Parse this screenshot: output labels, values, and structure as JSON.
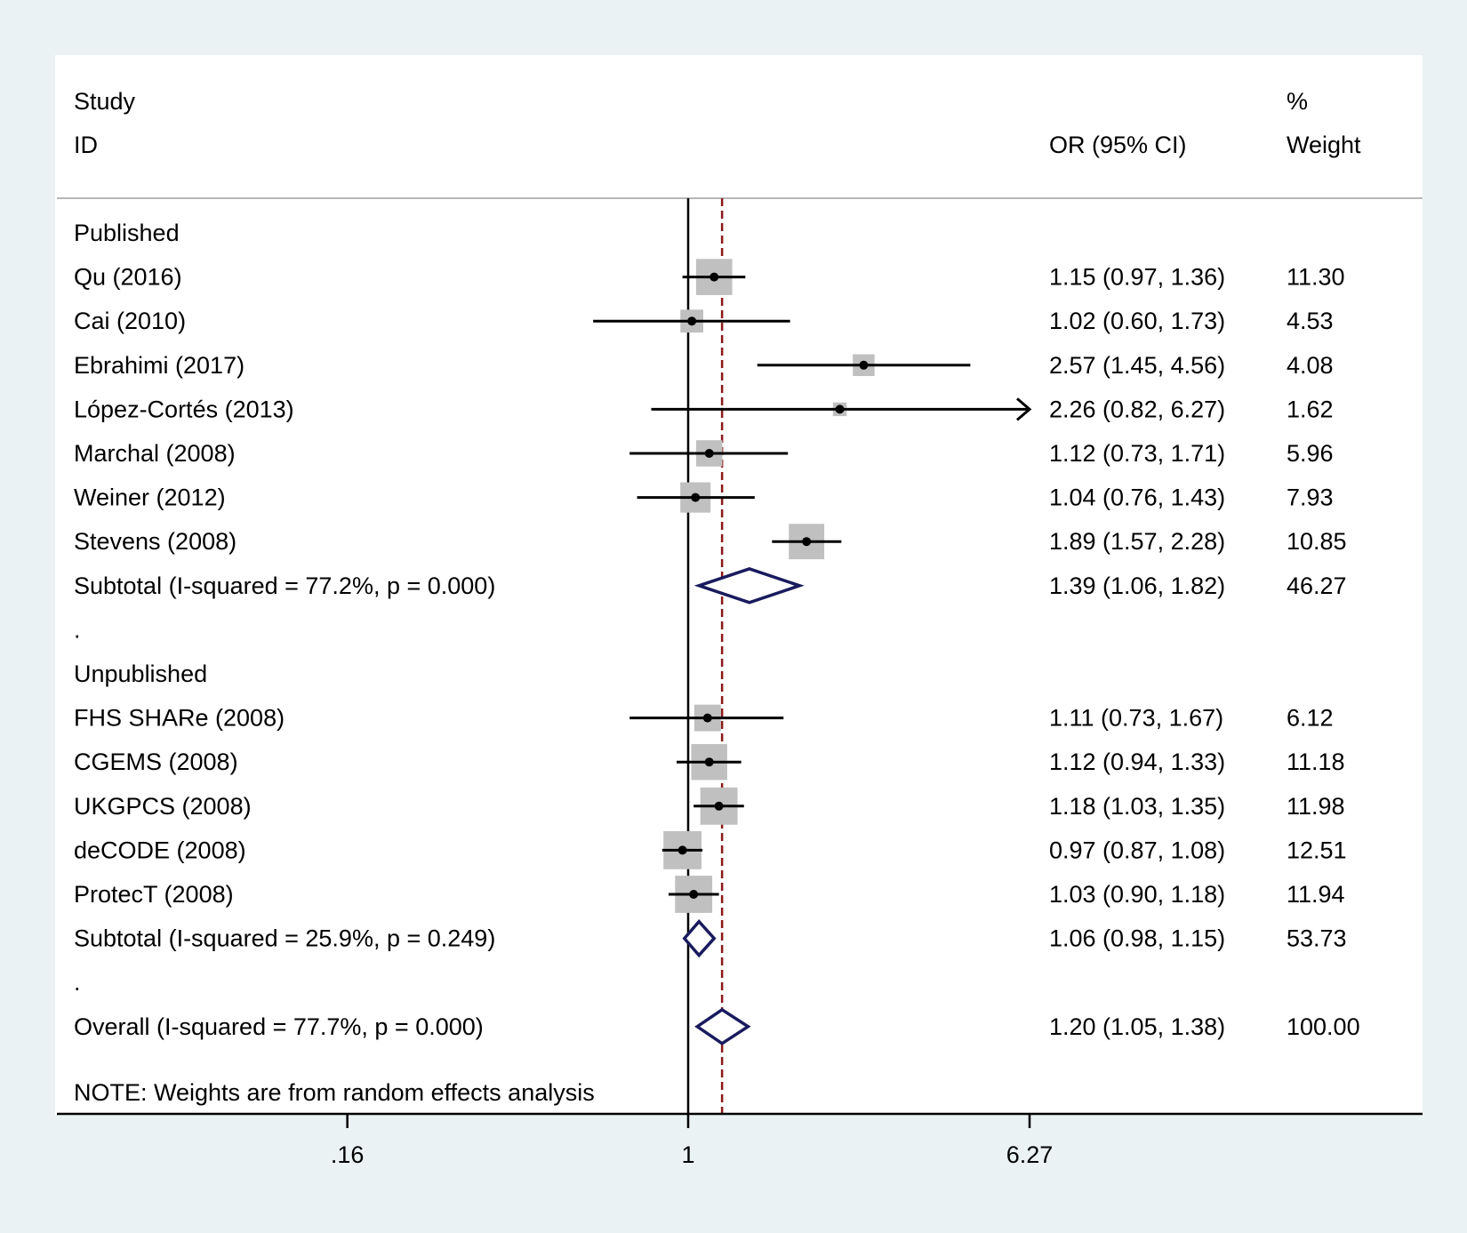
{
  "chart_data": {
    "type": "forest",
    "scale": "log",
    "header": {
      "study_top": "Study",
      "study_bottom": "ID",
      "estimate": "OR (95% CI)",
      "weight_top": "%",
      "weight_bottom": "Weight"
    },
    "null_value": 1,
    "pooled_line": 1.2,
    "x_ticks": [
      {
        "value": 0.16,
        "label": ".16"
      },
      {
        "value": 1,
        "label": "1"
      },
      {
        "value": 6.27,
        "label": "6.27"
      }
    ],
    "rows": [
      {
        "kind": "group",
        "label": "Published"
      },
      {
        "kind": "study",
        "label": "Qu (2016)",
        "or": 1.15,
        "lo": 0.97,
        "hi": 1.36,
        "ci_text": "1.15 (0.97, 1.36)",
        "weight": 11.3,
        "weight_text": "11.30"
      },
      {
        "kind": "study",
        "label": "Cai (2010)",
        "or": 1.02,
        "lo": 0.6,
        "hi": 1.73,
        "ci_text": "1.02 (0.60, 1.73)",
        "weight": 4.53,
        "weight_text": "4.53"
      },
      {
        "kind": "study",
        "label": "Ebrahimi (2017)",
        "or": 2.57,
        "lo": 1.45,
        "hi": 4.56,
        "ci_text": "2.57 (1.45, 4.56)",
        "weight": 4.08,
        "weight_text": "4.08"
      },
      {
        "kind": "study",
        "label": "López-Cortés (2013)",
        "or": 2.26,
        "lo": 0.82,
        "hi": 6.27,
        "ci_text": "2.26 (0.82, 6.27)",
        "weight": 1.62,
        "weight_text": "1.62",
        "arrow": true
      },
      {
        "kind": "study",
        "label": "Marchal (2008)",
        "or": 1.12,
        "lo": 0.73,
        "hi": 1.71,
        "ci_text": "1.12 (0.73, 1.71)",
        "weight": 5.96,
        "weight_text": "5.96"
      },
      {
        "kind": "study",
        "label": "Weiner (2012)",
        "or": 1.04,
        "lo": 0.76,
        "hi": 1.43,
        "ci_text": "1.04 (0.76, 1.43)",
        "weight": 7.93,
        "weight_text": "7.93"
      },
      {
        "kind": "study",
        "label": "Stevens (2008)",
        "or": 1.89,
        "lo": 1.57,
        "hi": 2.28,
        "ci_text": "1.89 (1.57, 2.28)",
        "weight": 10.85,
        "weight_text": "10.85"
      },
      {
        "kind": "subtotal",
        "label": "Subtotal  (I-squared = 77.2%, p = 0.000)",
        "or": 1.39,
        "lo": 1.06,
        "hi": 1.82,
        "ci_text": "1.39 (1.06, 1.82)",
        "weight": 46.27,
        "weight_text": "46.27"
      },
      {
        "kind": "spacer",
        "label": "."
      },
      {
        "kind": "group",
        "label": "Unpublished"
      },
      {
        "kind": "study",
        "label": "FHS SHARe (2008)",
        "or": 1.11,
        "lo": 0.73,
        "hi": 1.67,
        "ci_text": "1.11 (0.73, 1.67)",
        "weight": 6.12,
        "weight_text": "6.12"
      },
      {
        "kind": "study",
        "label": "CGEMS (2008)",
        "or": 1.12,
        "lo": 0.94,
        "hi": 1.33,
        "ci_text": "1.12 (0.94, 1.33)",
        "weight": 11.18,
        "weight_text": "11.18"
      },
      {
        "kind": "study",
        "label": "UKGPCS (2008)",
        "or": 1.18,
        "lo": 1.03,
        "hi": 1.35,
        "ci_text": "1.18 (1.03, 1.35)",
        "weight": 11.98,
        "weight_text": "11.98"
      },
      {
        "kind": "study",
        "label": "deCODE (2008)",
        "or": 0.97,
        "lo": 0.87,
        "hi": 1.08,
        "ci_text": "0.97 (0.87, 1.08)",
        "weight": 12.51,
        "weight_text": "12.51"
      },
      {
        "kind": "study",
        "label": "ProtecT (2008)",
        "or": 1.03,
        "lo": 0.9,
        "hi": 1.18,
        "ci_text": "1.03 (0.90, 1.18)",
        "weight": 11.94,
        "weight_text": "11.94"
      },
      {
        "kind": "subtotal",
        "label": "Subtotal  (I-squared = 25.9%, p = 0.249)",
        "or": 1.06,
        "lo": 0.98,
        "hi": 1.15,
        "ci_text": "1.06 (0.98, 1.15)",
        "weight": 53.73,
        "weight_text": "53.73"
      },
      {
        "kind": "spacer",
        "label": "."
      },
      {
        "kind": "overall",
        "label": "Overall  (I-squared = 77.7%, p = 0.000)",
        "or": 1.2,
        "lo": 1.05,
        "hi": 1.38,
        "ci_text": "1.20 (1.05, 1.38)",
        "weight": 100.0,
        "weight_text": "100.00"
      }
    ],
    "note": "NOTE: Weights are from random effects analysis",
    "colors": {
      "background": "#eaf2f3",
      "panel": "#ffffff",
      "weight_box": "#c0c0c0",
      "diamond": "#1a1a5e",
      "pooled_line": "#8b1a1a",
      "ink": "#000000"
    }
  }
}
